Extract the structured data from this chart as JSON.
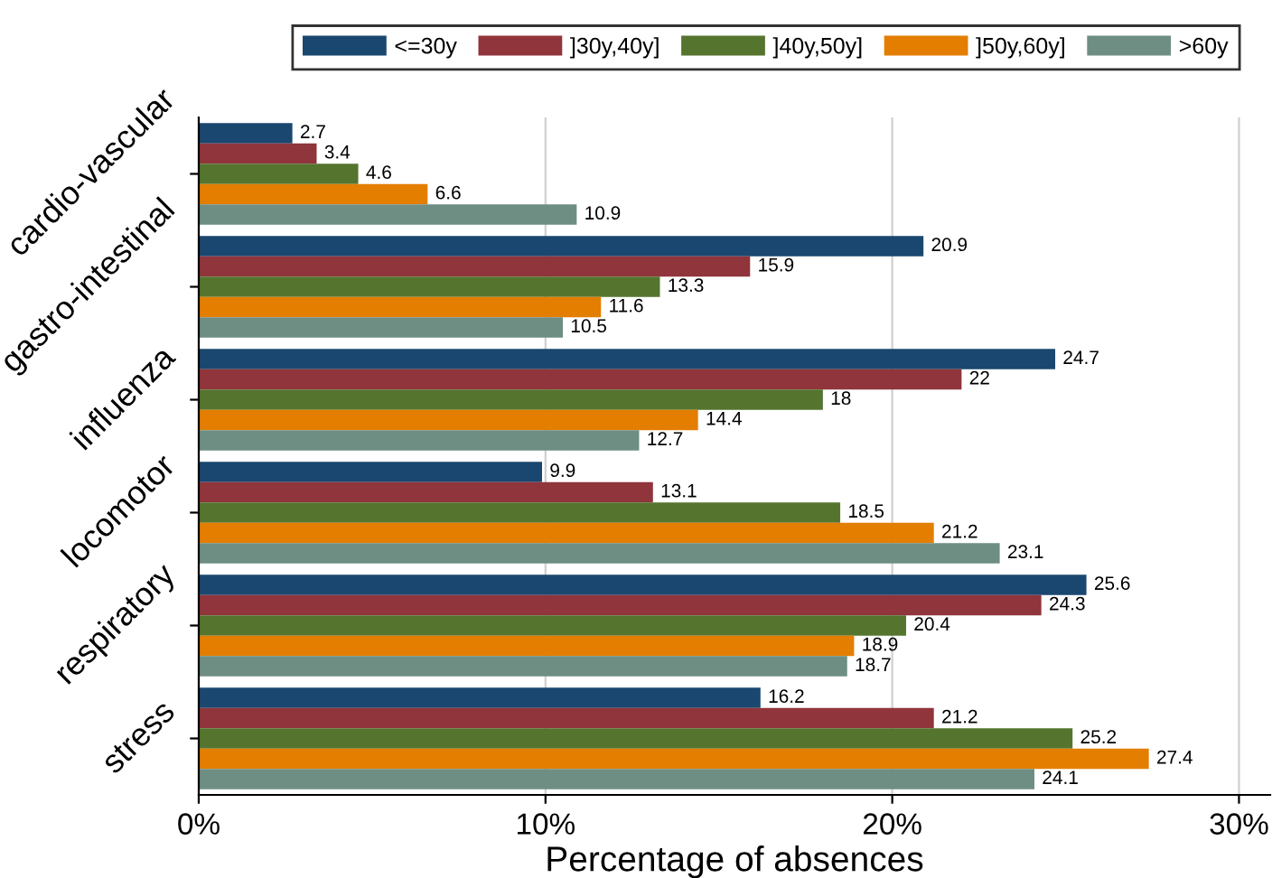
{
  "chart_data": {
    "type": "bar",
    "orientation": "horizontal",
    "xlabel": "Percentage of absences",
    "categories": [
      "cardio-vascular",
      "gastro-intestinal",
      "influenza",
      "locomotor",
      "respiratory",
      "stress"
    ],
    "series": [
      {
        "name": "<=30y",
        "color": "#1a476f",
        "values": [
          2.7,
          20.9,
          24.7,
          9.9,
          25.6,
          16.2
        ]
      },
      {
        "name": "]30y,40y]",
        "color": "#90353b",
        "values": [
          3.4,
          15.9,
          22,
          13.1,
          24.3,
          21.2
        ]
      },
      {
        "name": "]40y,50y]",
        "color": "#55752f",
        "values": [
          4.6,
          13.3,
          18,
          18.5,
          20.4,
          25.2
        ]
      },
      {
        "name": "]50y,60y]",
        "color": "#e37e00",
        "values": [
          6.6,
          11.6,
          14.4,
          21.2,
          18.9,
          27.4
        ]
      },
      {
        "name": ">60y",
        "color": "#6e8e84",
        "values": [
          10.9,
          10.5,
          12.7,
          23.1,
          18.7,
          24.1
        ]
      }
    ],
    "xlim": [
      0,
      30.9
    ],
    "xticks": [
      {
        "value": 0,
        "label": "0%"
      },
      {
        "value": 10,
        "label": "10%"
      },
      {
        "value": 20,
        "label": "20%"
      },
      {
        "value": 30,
        "label": "30%"
      }
    ],
    "grid": "x",
    "legend": "top",
    "data_labels": true
  }
}
